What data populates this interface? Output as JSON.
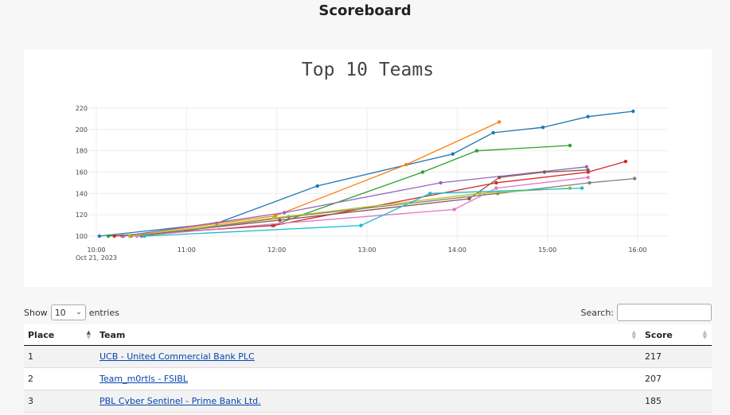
{
  "page": {
    "title": "Scoreboard"
  },
  "controls": {
    "show_label": "Show",
    "entries_value": "10",
    "entries_label": "entries",
    "search_label": "Search:",
    "search_value": ""
  },
  "table": {
    "headers": {
      "place": "Place",
      "team": "Team",
      "score": "Score"
    },
    "rows": [
      {
        "place": "1",
        "team": "UCB - United Commercial Bank PLC",
        "score": "217"
      },
      {
        "place": "2",
        "team": "Team_m0rtls - FSIBL",
        "score": "207"
      },
      {
        "place": "3",
        "team": "PBL Cyber Sentinel - Prime Bank Ltd.",
        "score": "185"
      }
    ]
  },
  "chart_data": {
    "type": "line",
    "title": "Top 10 Teams",
    "xlabel": "",
    "ylabel": "",
    "x_range": [
      "10:00",
      "16:00"
    ],
    "x_ticks": [
      "10:00",
      "11:00",
      "12:00",
      "13:00",
      "14:00",
      "15:00",
      "16:00"
    ],
    "x_date_label": "Oct 21, 2023",
    "ylim": [
      95,
      222
    ],
    "y_ticks": [
      100,
      120,
      140,
      160,
      180,
      200,
      220
    ],
    "grid": true,
    "legend": "none",
    "series": [
      {
        "color": "#1f77b4",
        "points": [
          [
            "10:02",
            100
          ],
          [
            "11:20",
            112
          ],
          [
            "12:27",
            147
          ],
          [
            "13:57",
            177
          ],
          [
            "14:24",
            197
          ],
          [
            "14:57",
            202
          ],
          [
            "15:27",
            212
          ],
          [
            "15:57",
            217
          ]
        ]
      },
      {
        "color": "#ff7f0e",
        "points": [
          [
            "10:17",
            100
          ],
          [
            "11:59",
            119
          ],
          [
            "13:26",
            167
          ],
          [
            "14:28",
            207
          ]
        ]
      },
      {
        "color": "#2ca02c",
        "points": [
          [
            "10:08",
            100
          ],
          [
            "11:57",
            110
          ],
          [
            "13:37",
            160
          ],
          [
            "14:13",
            180
          ],
          [
            "15:15",
            185
          ]
        ]
      },
      {
        "color": "#d62728",
        "points": [
          [
            "10:12",
            100
          ],
          [
            "11:58",
            110
          ],
          [
            "14:26",
            150
          ],
          [
            "15:27",
            160
          ],
          [
            "15:52",
            170
          ]
        ]
      },
      {
        "color": "#9467bd",
        "points": [
          [
            "10:18",
            100
          ],
          [
            "12:05",
            122
          ],
          [
            "13:49",
            150
          ],
          [
            "15:26",
            165
          ]
        ]
      },
      {
        "color": "#8c564b",
        "points": [
          [
            "10:23",
            100
          ],
          [
            "12:02",
            115
          ],
          [
            "14:08",
            135
          ],
          [
            "14:28",
            155
          ],
          [
            "14:58",
            160
          ],
          [
            "15:27",
            162
          ]
        ]
      },
      {
        "color": "#e377c2",
        "points": [
          [
            "10:27",
            100
          ],
          [
            "12:03",
            112
          ],
          [
            "13:58",
            125
          ],
          [
            "14:26",
            145
          ],
          [
            "15:27",
            155
          ]
        ]
      },
      {
        "color": "#7f7f7f",
        "points": [
          [
            "10:30",
            100
          ],
          [
            "12:08",
            118
          ],
          [
            "14:27",
            140
          ],
          [
            "15:28",
            150
          ],
          [
            "15:58",
            154
          ]
        ]
      },
      {
        "color": "#bcbd22",
        "points": [
          [
            "10:22",
            100
          ],
          [
            "11:58",
            117
          ],
          [
            "14:15",
            140
          ],
          [
            "15:15",
            145
          ]
        ]
      },
      {
        "color": "#17becf",
        "points": [
          [
            "10:32",
            100
          ],
          [
            "12:56",
            110
          ],
          [
            "13:42",
            140
          ],
          [
            "15:23",
            145
          ]
        ]
      }
    ]
  }
}
